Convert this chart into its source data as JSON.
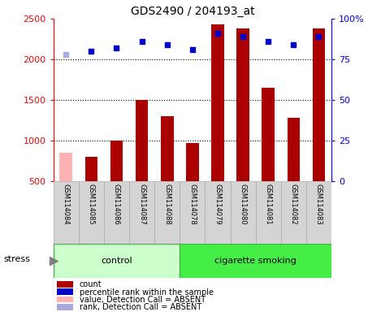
{
  "title": "GDS2490 / 204193_at",
  "samples": [
    "GSM114084",
    "GSM114085",
    "GSM114086",
    "GSM114087",
    "GSM114088",
    "GSM114078",
    "GSM114079",
    "GSM114080",
    "GSM114081",
    "GSM114082",
    "GSM114083"
  ],
  "counts": [
    850,
    800,
    1000,
    1500,
    1300,
    970,
    2430,
    2380,
    1650,
    1280,
    2380
  ],
  "percentile_ranks": [
    78,
    80,
    82,
    86,
    84,
    81,
    91,
    89,
    86,
    84,
    89
  ],
  "absent_flags": [
    true,
    false,
    false,
    false,
    false,
    false,
    false,
    false,
    false,
    false,
    false
  ],
  "control_group": [
    0,
    1,
    2,
    3,
    4
  ],
  "smoking_group": [
    5,
    6,
    7,
    8,
    9,
    10
  ],
  "bar_color_present": "#aa0000",
  "bar_color_absent": "#ffb3b3",
  "dot_color_present": "#0000cc",
  "dot_color_absent": "#aaaadd",
  "ylim_left": [
    500,
    2500
  ],
  "ylim_right": [
    0,
    100
  ],
  "yticks_left": [
    500,
    1000,
    1500,
    2000,
    2500
  ],
  "yticks_right": [
    0,
    25,
    50,
    75,
    100
  ],
  "ytick_labels_right": [
    "0",
    "25",
    "50",
    "75",
    "100%"
  ],
  "group_labels": [
    "control",
    "cigarette smoking"
  ],
  "ctrl_color": "#ccffcc",
  "smoke_color": "#44ee44",
  "stress_label": "stress",
  "legend_items": [
    {
      "label": "count",
      "color": "#aa0000"
    },
    {
      "label": "percentile rank within the sample",
      "color": "#0000cc"
    },
    {
      "label": "value, Detection Call = ABSENT",
      "color": "#ffb3b3"
    },
    {
      "label": "rank, Detection Call = ABSENT",
      "color": "#aaaadd"
    }
  ],
  "dotted_grid_values": [
    1000,
    1500,
    2000
  ],
  "bar_width": 0.5,
  "tick_label_gray": "#d4d4d4",
  "tick_label_gray_edge": "#aaaaaa"
}
